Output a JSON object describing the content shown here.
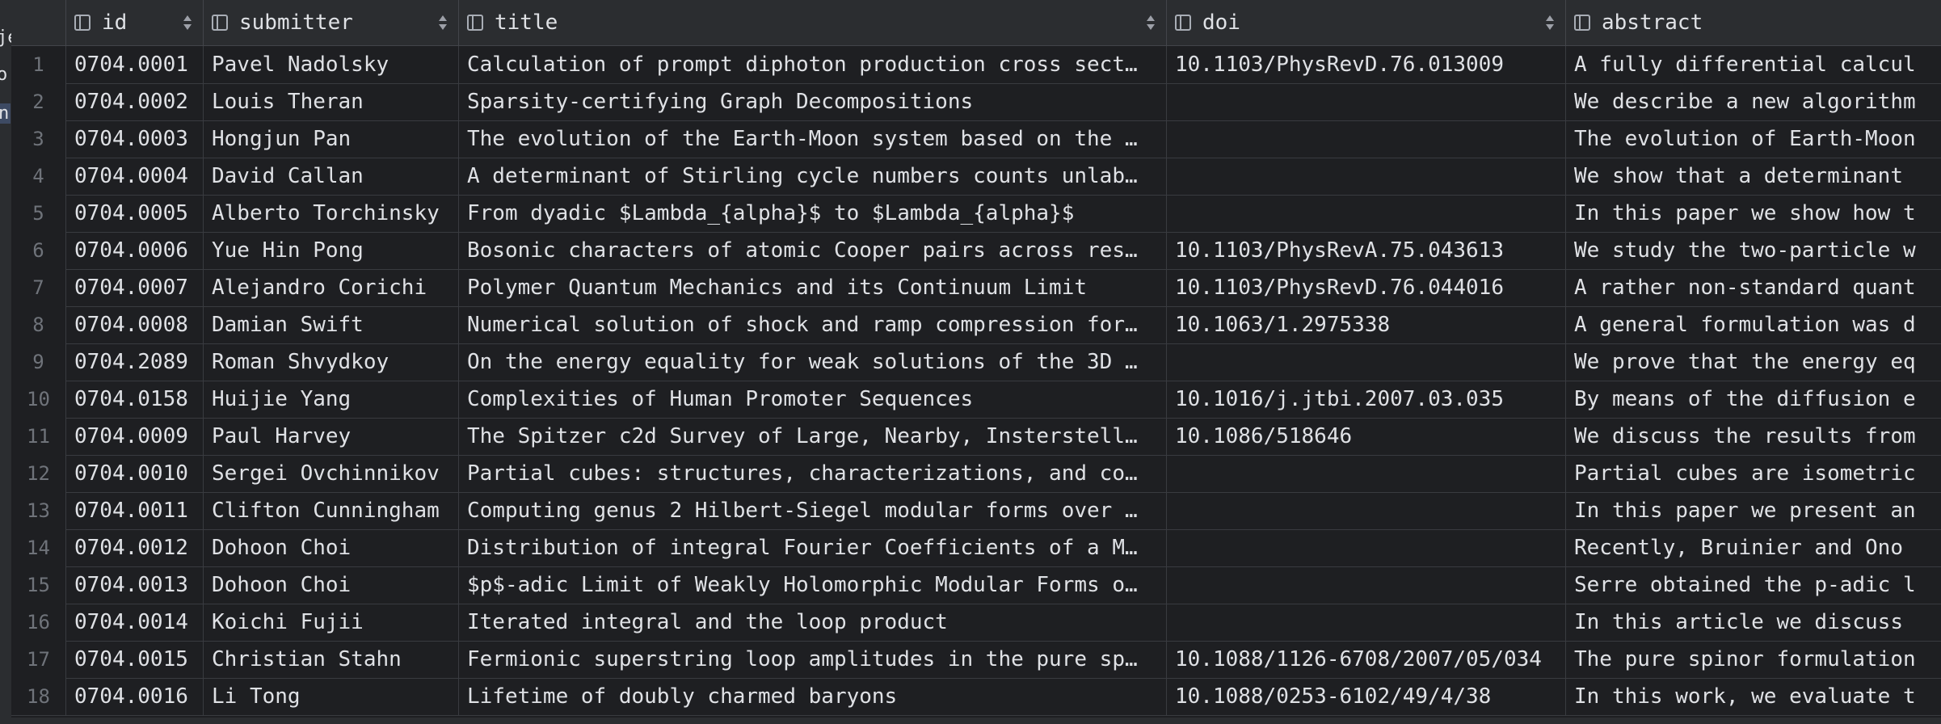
{
  "left_fragments": [
    "je",
    "o",
    "n"
  ],
  "columns": [
    {
      "label": "id"
    },
    {
      "label": "submitter"
    },
    {
      "label": "title"
    },
    {
      "label": "doi"
    },
    {
      "label": "abstract"
    }
  ],
  "rows": [
    {
      "n": "1",
      "id": "0704.0001",
      "submitter": "Pavel Nadolsky",
      "title": "Calculation of prompt diphoton production cross sect…",
      "doi": "10.1103/PhysRevD.76.013009",
      "abstract": "A fully differential calcul"
    },
    {
      "n": "2",
      "id": "0704.0002",
      "submitter": "Louis Theran",
      "title": "Sparsity-certifying Graph Decompositions",
      "doi": "",
      "abstract": "We describe a new algorithm"
    },
    {
      "n": "3",
      "id": "0704.0003",
      "submitter": "Hongjun Pan",
      "title": "The evolution of the Earth-Moon system based on the …",
      "doi": "",
      "abstract": "The evolution of Earth-Moon"
    },
    {
      "n": "4",
      "id": "0704.0004",
      "submitter": "David Callan",
      "title": "A determinant of Stirling cycle numbers counts unlab…",
      "doi": "",
      "abstract": "We show that a determinant"
    },
    {
      "n": "5",
      "id": "0704.0005",
      "submitter": "Alberto Torchinsky",
      "title": "From dyadic $Lambda_{alpha}$ to $Lambda_{alpha}$",
      "doi": "",
      "abstract": "In this paper we show how t"
    },
    {
      "n": "6",
      "id": "0704.0006",
      "submitter": "Yue Hin Pong",
      "title": "Bosonic characters of atomic Cooper pairs across res…",
      "doi": "10.1103/PhysRevA.75.043613",
      "abstract": "We study the two-particle w"
    },
    {
      "n": "7",
      "id": "0704.0007",
      "submitter": "Alejandro Corichi",
      "title": "Polymer Quantum Mechanics and its Continuum Limit",
      "doi": "10.1103/PhysRevD.76.044016",
      "abstract": "A rather non-standard quant"
    },
    {
      "n": "8",
      "id": "0704.0008",
      "submitter": "Damian Swift",
      "title": "Numerical solution of shock and ramp compression for…",
      "doi": "10.1063/1.2975338",
      "abstract": "A general formulation was d"
    },
    {
      "n": "9",
      "id": "0704.2089",
      "submitter": "Roman Shvydkoy",
      "title": "On the energy equality for weak solutions of the 3D …",
      "doi": "",
      "abstract": "We prove that the energy eq"
    },
    {
      "n": "10",
      "id": "0704.0158",
      "submitter": "Huijie Yang",
      "title": "Complexities of Human Promoter Sequences",
      "doi": "10.1016/j.jtbi.2007.03.035",
      "abstract": "By means of the diffusion e"
    },
    {
      "n": "11",
      "id": "0704.0009",
      "submitter": "Paul Harvey",
      "title": "The Spitzer c2d Survey of Large, Nearby, Insterstell…",
      "doi": "10.1086/518646",
      "abstract": "We discuss the results from"
    },
    {
      "n": "12",
      "id": "0704.0010",
      "submitter": "Sergei Ovchinnikov",
      "title": "Partial cubes: structures, characterizations, and co…",
      "doi": "",
      "abstract": "Partial cubes are isometric"
    },
    {
      "n": "13",
      "id": "0704.0011",
      "submitter": "Clifton Cunningham",
      "title": "Computing genus 2 Hilbert-Siegel modular forms over …",
      "doi": "",
      "abstract": "In this paper we present an"
    },
    {
      "n": "14",
      "id": "0704.0012",
      "submitter": "Dohoon Choi",
      "title": "Distribution of integral Fourier Coefficients of a M…",
      "doi": "",
      "abstract": "Recently, Bruinier and Ono"
    },
    {
      "n": "15",
      "id": "0704.0013",
      "submitter": "Dohoon Choi",
      "title": "$p$-adic Limit of Weakly Holomorphic Modular Forms o…",
      "doi": "",
      "abstract": "Serre obtained the p-adic l"
    },
    {
      "n": "16",
      "id": "0704.0014",
      "submitter": "Koichi Fujii",
      "title": "Iterated integral and the loop product",
      "doi": "",
      "abstract": "In this article we discuss"
    },
    {
      "n": "17",
      "id": "0704.0015",
      "submitter": "Christian Stahn",
      "title": "Fermionic superstring loop amplitudes in the pure sp…",
      "doi": "10.1088/1126-6708/2007/05/034",
      "abstract": "The pure spinor formulation"
    },
    {
      "n": "18",
      "id": "0704.0016",
      "submitter": "Li Tong",
      "title": "Lifetime of doubly charmed baryons",
      "doi": "10.1088/0253-6102/49/4/38",
      "abstract": "In this work, we evaluate t"
    }
  ]
}
